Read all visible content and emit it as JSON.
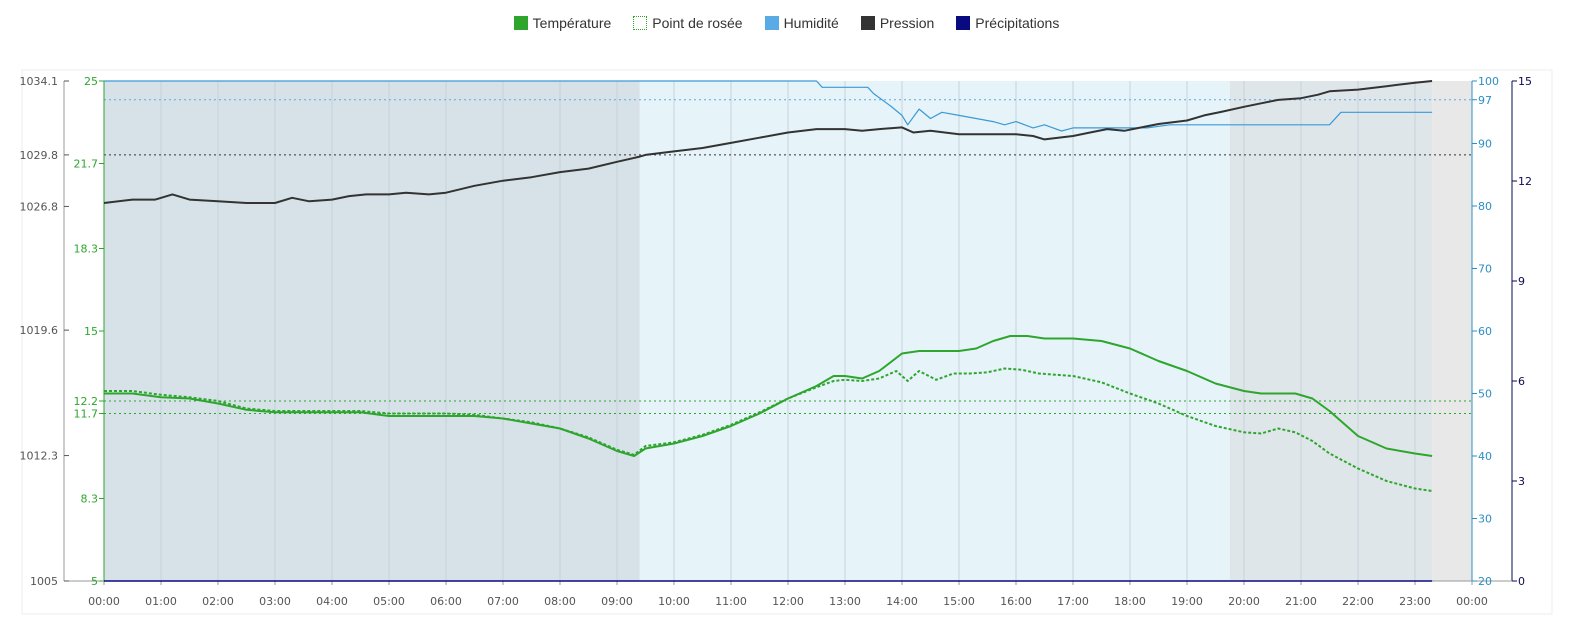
{
  "legend": [
    {
      "label": "Température",
      "color": "#2ea62e",
      "style": "solid"
    },
    {
      "label": "Point de rosée",
      "color": "#2ea62e",
      "style": "dotted"
    },
    {
      "label": "Humidité",
      "color": "#5aaae6",
      "style": "solid"
    },
    {
      "label": "Pression",
      "color": "#333333",
      "style": "solid"
    },
    {
      "label": "Précipitations",
      "color": "#0a0a80",
      "style": "solid"
    }
  ],
  "chart_data": {
    "type": "line",
    "x_ticks": [
      "00:00",
      "01:00",
      "02:00",
      "03:00",
      "04:00",
      "05:00",
      "06:00",
      "07:00",
      "08:00",
      "09:00",
      "10:00",
      "11:00",
      "12:00",
      "13:00",
      "14:00",
      "15:00",
      "16:00",
      "17:00",
      "18:00",
      "19:00",
      "20:00",
      "21:00",
      "22:00",
      "23:00",
      "00:00"
    ],
    "x_unit": "hours",
    "x_range": [
      0,
      24
    ],
    "axes": {
      "pressure": {
        "ticks": [
          "1034.1",
          "1029.8",
          "1026.8",
          "1019.6",
          "1012.3",
          "1005"
        ],
        "range": [
          1005,
          1034.1
        ],
        "color": "#555555"
      },
      "temperature": {
        "ticks": [
          "25",
          "21.7",
          "18.3",
          "15",
          "12.2",
          "11.7",
          "8.3",
          "5"
        ],
        "range": [
          5,
          25
        ],
        "color": "#2ea62e"
      },
      "humidity": {
        "ticks": [
          "100",
          "97",
          "90",
          "80",
          "70",
          "60",
          "50",
          "40",
          "30",
          "20"
        ],
        "range": [
          20,
          100
        ],
        "color": "#2b8fc4"
      },
      "precipitation": {
        "ticks": [
          "15",
          "12",
          "9",
          "6",
          "3",
          "0"
        ],
        "range": [
          0,
          15
        ],
        "color": "#0a0a50"
      }
    },
    "reference_lines": [
      {
        "axis": "humidity",
        "value": 97,
        "color": "#5aaae6"
      },
      {
        "axis": "pressure",
        "value": 1029.8,
        "color": "#333333"
      },
      {
        "axis": "temperature",
        "value": 12.2,
        "color": "#2ea62e"
      },
      {
        "axis": "temperature",
        "value": 11.7,
        "color": "#2ea62e"
      }
    ],
    "shaded_bands": [
      {
        "from": 0,
        "to": 9.4,
        "color": "#d6e2e8"
      },
      {
        "from": 9.4,
        "to": 19.75,
        "color": "#e6f3f9"
      },
      {
        "from": 19.75,
        "to": 23.3,
        "color": "#dfe6e9"
      },
      {
        "from": 23.3,
        "to": 24,
        "color": "#e8e8e8"
      }
    ],
    "series": [
      {
        "name": "Température",
        "axis": "temperature",
        "color": "#2ea62e",
        "dash": "",
        "x": [
          0,
          0.5,
          1,
          1.5,
          2,
          2.5,
          3,
          3.5,
          4,
          4.5,
          5,
          5.5,
          6,
          6.5,
          7,
          7.5,
          8,
          8.5,
          9,
          9.3,
          9.5,
          10,
          10.5,
          11,
          11.5,
          12,
          12.5,
          12.8,
          13,
          13.3,
          13.6,
          14,
          14.3,
          14.6,
          15,
          15.3,
          15.6,
          15.9,
          16.2,
          16.5,
          17,
          17.5,
          18,
          18.5,
          19,
          19.5,
          20,
          20.3,
          20.6,
          20.9,
          21.2,
          21.5,
          22,
          22.5,
          23,
          23.3
        ],
        "y": [
          12.5,
          12.5,
          12.35,
          12.3,
          12.1,
          11.85,
          11.75,
          11.75,
          11.75,
          11.75,
          11.6,
          11.6,
          11.6,
          11.6,
          11.5,
          11.3,
          11.1,
          10.7,
          10.2,
          10.0,
          10.3,
          10.5,
          10.8,
          11.2,
          11.7,
          12.3,
          12.8,
          13.2,
          13.2,
          13.1,
          13.4,
          14.1,
          14.2,
          14.2,
          14.2,
          14.3,
          14.6,
          14.8,
          14.8,
          14.7,
          14.7,
          14.6,
          14.3,
          13.8,
          13.4,
          12.9,
          12.6,
          12.5,
          12.5,
          12.5,
          12.3,
          11.8,
          10.8,
          10.3,
          10.1,
          10.0
        ]
      },
      {
        "name": "Point de rosée",
        "axis": "temperature",
        "color": "#2ea62e",
        "dash": "3,2",
        "x": [
          0,
          0.5,
          1,
          1.5,
          2,
          2.5,
          3,
          3.5,
          4,
          4.5,
          5,
          5.5,
          6,
          6.5,
          7,
          7.5,
          8,
          8.5,
          9,
          9.3,
          9.5,
          10,
          10.5,
          11,
          11.5,
          12,
          12.5,
          12.8,
          13,
          13.3,
          13.6,
          13.9,
          14.1,
          14.3,
          14.6,
          14.9,
          15.2,
          15.5,
          15.8,
          16.1,
          16.4,
          16.7,
          17,
          17.5,
          18,
          18.5,
          19,
          19.5,
          20,
          20.3,
          20.6,
          20.9,
          21.2,
          21.5,
          22,
          22.5,
          23,
          23.3
        ],
        "y": [
          12.6,
          12.6,
          12.45,
          12.35,
          12.2,
          11.9,
          11.8,
          11.8,
          11.8,
          11.8,
          11.7,
          11.7,
          11.7,
          11.65,
          11.5,
          11.35,
          11.1,
          10.75,
          10.25,
          10.05,
          10.4,
          10.55,
          10.85,
          11.25,
          11.75,
          12.3,
          12.75,
          13.0,
          13.05,
          13.0,
          13.1,
          13.4,
          13.0,
          13.4,
          13.05,
          13.3,
          13.3,
          13.35,
          13.5,
          13.45,
          13.3,
          13.25,
          13.2,
          12.95,
          12.5,
          12.1,
          11.6,
          11.2,
          10.95,
          10.9,
          11.1,
          10.95,
          10.6,
          10.1,
          9.5,
          9.0,
          8.7,
          8.6
        ]
      },
      {
        "name": "Humidité",
        "axis": "humidity",
        "color": "#3a9ad6",
        "dash": "",
        "x": [
          0,
          12.5,
          12.6,
          13.4,
          13.5,
          13.8,
          14.0,
          14.1,
          14.3,
          14.5,
          14.7,
          15.0,
          15.3,
          15.6,
          15.8,
          16.0,
          16.3,
          16.5,
          16.8,
          17.0,
          17.2,
          17.5,
          17.8,
          18.3,
          18.7,
          19.0,
          19.3,
          19.7,
          20.0,
          21.5,
          21.7,
          23.3
        ],
        "y": [
          100,
          100,
          99,
          99,
          98,
          96,
          94.5,
          93,
          95.5,
          94,
          95,
          94.5,
          94,
          93.5,
          93,
          93.5,
          92.5,
          93,
          92,
          92.5,
          92.5,
          92.5,
          92.5,
          92.5,
          93,
          93,
          93,
          93,
          93,
          93,
          95,
          95
        ]
      },
      {
        "name": "Pression",
        "axis": "pressure",
        "color": "#333333",
        "dash": "",
        "x": [
          0,
          0.5,
          0.9,
          1.2,
          1.5,
          2,
          2.5,
          3,
          3.3,
          3.6,
          4,
          4.3,
          4.6,
          5,
          5.3,
          5.7,
          6,
          6.5,
          7,
          7.5,
          8,
          8.5,
          9,
          9.4,
          9.5,
          10,
          10.5,
          11,
          11.5,
          12,
          12.5,
          13,
          13.3,
          13.6,
          14,
          14.2,
          14.5,
          15,
          15.5,
          16,
          16.3,
          16.5,
          17,
          17.3,
          17.6,
          17.9,
          18.2,
          18.5,
          19,
          19.3,
          19.6,
          20,
          20.3,
          20.6,
          21,
          21.3,
          21.5,
          22,
          22.5,
          23,
          23.3
        ],
        "y": [
          1027,
          1027.2,
          1027.2,
          1027.5,
          1027.2,
          1027.1,
          1027,
          1027,
          1027.3,
          1027.1,
          1027.2,
          1027.4,
          1027.5,
          1027.5,
          1027.6,
          1027.5,
          1027.6,
          1028,
          1028.3,
          1028.5,
          1028.8,
          1029,
          1029.4,
          1029.7,
          1029.8,
          1030,
          1030.2,
          1030.5,
          1030.8,
          1031.1,
          1031.3,
          1031.3,
          1031.2,
          1031.3,
          1031.4,
          1031.1,
          1031.2,
          1031,
          1031,
          1031,
          1030.9,
          1030.7,
          1030.9,
          1031.1,
          1031.3,
          1031.2,
          1031.4,
          1031.6,
          1031.8,
          1032.1,
          1032.3,
          1032.6,
          1032.8,
          1033,
          1033.1,
          1033.3,
          1033.5,
          1033.6,
          1033.8,
          1034.0,
          1034.1
        ]
      },
      {
        "name": "Précipitations",
        "axis": "precipitation",
        "color": "#0a0a80",
        "dash": "",
        "x": [
          0,
          23.3
        ],
        "y": [
          0,
          0
        ]
      }
    ]
  }
}
